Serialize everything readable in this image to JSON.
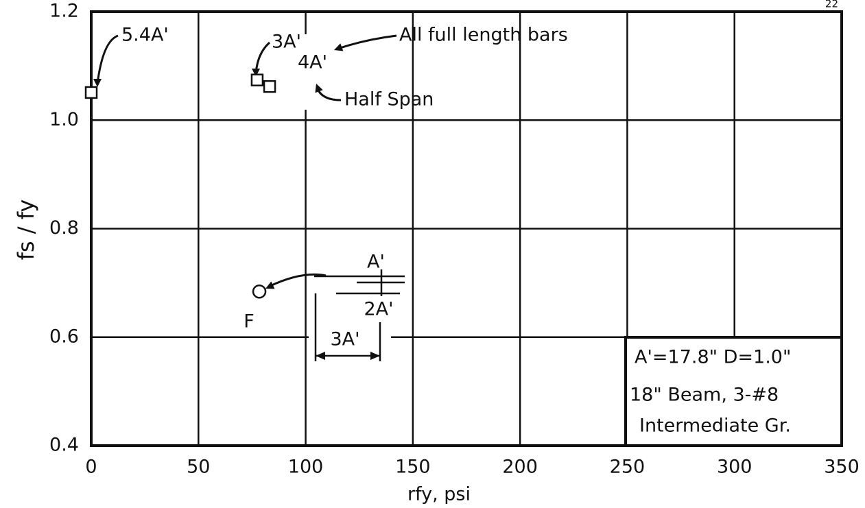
{
  "chart_data": {
    "type": "scatter",
    "x_label": "rfy, psi",
    "y_label": "fs / fy",
    "xlim": [
      0,
      350
    ],
    "xticks": [
      0,
      50,
      100,
      150,
      200,
      250,
      300,
      350
    ],
    "ylim": [
      0.4,
      1.2
    ],
    "yticks": [
      0.4,
      0.6,
      0.8,
      {
        "value": 1.0,
        "label": "1.0"
      },
      1.2
    ],
    "grid": true,
    "series": [
      {
        "marker": "square",
        "color": "#111111",
        "x": [
          0,
          77.4,
          83.2
        ],
        "y": [
          1.051,
          1.074,
          1.062
        ]
      },
      {
        "marker": "circle",
        "color": "#111111",
        "x": [
          78.4
        ],
        "y": [
          0.684
        ]
      }
    ],
    "annotations": [
      "5.4A'",
      "3A'",
      "4A'",
      "All full length bars",
      "Half Span",
      "F",
      "A'",
      "2A'",
      "3A'",
      "22"
    ],
    "info_box": [
      "A'=17.8\"   D=1.0\"",
      "18\" Beam, 3-#8",
      "Intermediate Gr."
    ]
  }
}
